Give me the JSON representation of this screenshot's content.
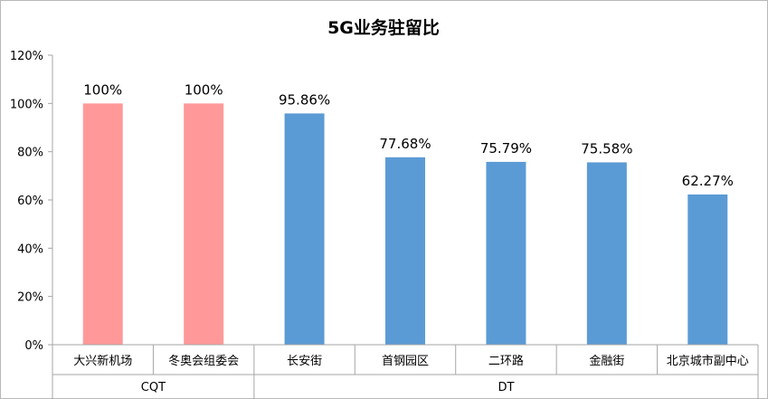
{
  "chart_data": {
    "type": "bar",
    "title": "5G业务驻留比",
    "xlabel": "",
    "ylabel": "",
    "ylim": [
      0,
      120
    ],
    "yticks": [
      0,
      20,
      40,
      60,
      80,
      100,
      120
    ],
    "ytick_labels": [
      "0%",
      "20%",
      "40%",
      "60%",
      "80%",
      "100%",
      "120%"
    ],
    "categories": [
      "大兴新机场",
      "冬奥会组委会",
      "长安街",
      "首钢园区",
      "二环路",
      "金融街",
      "北京城市副中心"
    ],
    "values": [
      100,
      100,
      95.86,
      77.68,
      75.79,
      75.58,
      62.27
    ],
    "data_labels": [
      "100%",
      "100%",
      "95.86%",
      "77.68%",
      "75.79%",
      "75.58%",
      "62.27%"
    ],
    "groups": [
      {
        "label": "CQT",
        "start": 0,
        "end": 1,
        "color": "#ff9999"
      },
      {
        "label": "DT",
        "start": 2,
        "end": 6,
        "color": "#5b9bd5"
      }
    ],
    "grid": false,
    "legend": "none"
  }
}
